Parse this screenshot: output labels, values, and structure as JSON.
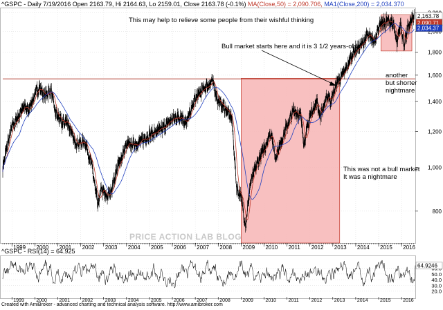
{
  "header": {
    "ticker": "^GSPC",
    "info": "- Daily 7/19/2016 Open 2163.79, Hi 2164.63, Lo 2159.01, Close 2163.78 (-0.1%)",
    "ma50": "MA(Close,50) = 2,090.706,",
    "ma200": "MA1(Close,200) = 2,034.370"
  },
  "rsi_header": "^GSPC - RSI(14) = 64.925",
  "footer": "Created with AmiBroker - advanced charting and technical analysis software. http://www.amibroker.com",
  "watermark": "PRICE ACTION LAB BLOG",
  "annotations": {
    "top_note": "This may help to relieve some people from their wishful thinking",
    "bull_line1": "Bull market starts here and it is 3 1/2 years-old",
    "nightmare_line1": "This was not a bull market",
    "nightmare_line2": "It was a nightmare",
    "another_line1": "another",
    "another_line2": "but shorter",
    "another_line3": "nightmare"
  },
  "price_tags": {
    "close": "2,163.78",
    "ma50": "2,090.71",
    "ma200": "2,034.37"
  },
  "rsi_tags": {
    "value": "64.9246"
  },
  "colors": {
    "price": "#000000",
    "ma50": "#c0392b",
    "ma200": "#1f3fbf",
    "highlight_fill": "#f7b5b5",
    "highlight_stroke": "#c0392b",
    "resistance": "#b03a2e",
    "grid": "#d8d8d8"
  },
  "chart_data": [
    {
      "type": "line",
      "title": "^GSPC - Daily",
      "x_unit": "year",
      "y_scale": "log",
      "ylim": [
        680,
        2250
      ],
      "xlim": [
        1998.6,
        2016.6
      ],
      "y_ticks": [
        800,
        1000,
        1200,
        1400,
        1600,
        1800,
        2000,
        2200
      ],
      "y_tick_labels": [
        "800",
        "1,000",
        "1,200",
        "1,400",
        "1,600",
        "1,800",
        "2,000",
        "2,200"
      ],
      "x_ticks": [
        1999,
        2000,
        2001,
        2002,
        2003,
        2004,
        2005,
        2006,
        2007,
        2008,
        2009,
        2010,
        2011,
        2012,
        2013,
        2014,
        2015,
        2016
      ],
      "x_tick_labels": [
        "1999",
        "2000",
        "2001",
        "2002",
        "2003",
        "2004",
        "2005",
        "2006",
        "2007",
        "2008",
        "2009",
        "2010",
        "2011",
        "2012",
        "2013",
        "2014",
        "2015",
        "2016"
      ],
      "resistance_level": 1570,
      "highlight_boxes": [
        {
          "x": [
            2009.0,
            2013.3
          ],
          "y": [
            680,
            1575
          ]
        },
        {
          "x": [
            2015.1,
            2016.45
          ],
          "y": [
            1810,
            2175
          ]
        }
      ],
      "series": [
        {
          "name": "^GSPC",
          "x": [
            1998.6,
            1998.8,
            1999.0,
            1999.3,
            1999.5,
            1999.7,
            2000.0,
            2000.2,
            2000.4,
            2000.7,
            2000.9,
            2001.2,
            2001.4,
            2001.7,
            2001.9,
            2002.2,
            2002.5,
            2002.75,
            2002.9,
            2003.1,
            2003.3,
            2003.6,
            2004.0,
            2004.5,
            2005.0,
            2005.5,
            2006.0,
            2006.4,
            2006.6,
            2007.0,
            2007.4,
            2007.75,
            2008.0,
            2008.3,
            2008.6,
            2008.8,
            2009.0,
            2009.2,
            2009.4,
            2009.7,
            2010.0,
            2010.3,
            2010.5,
            2010.9,
            2011.3,
            2011.6,
            2011.75,
            2012.0,
            2012.3,
            2012.45,
            2012.8,
            2012.9,
            2013.2,
            2013.5,
            2013.9,
            2014.3,
            2014.5,
            2014.8,
            2015.0,
            2015.4,
            2015.65,
            2015.8,
            2015.95,
            2016.1,
            2016.3,
            2016.55
          ],
          "values": [
            1000,
            1120,
            1230,
            1300,
            1370,
            1330,
            1450,
            1510,
            1440,
            1480,
            1320,
            1250,
            1270,
            1150,
            1130,
            1140,
            1000,
            820,
            900,
            860,
            880,
            1000,
            1120,
            1130,
            1180,
            1210,
            1280,
            1300,
            1250,
            1420,
            1500,
            1550,
            1400,
            1350,
            1280,
            900,
            860,
            740,
            920,
            1020,
            1100,
            1200,
            1050,
            1200,
            1340,
            1300,
            1130,
            1300,
            1400,
            1300,
            1450,
            1400,
            1550,
            1620,
            1800,
            1880,
            1960,
            1900,
            2050,
            2110,
            2080,
            1890,
            2080,
            1870,
            2050,
            2163.78
          ]
        },
        {
          "name": "MA(Close,50)",
          "values_note": "50-day moving average",
          "last": 2090.706
        },
        {
          "name": "MA1(Close,200)",
          "values_note": "200-day moving average",
          "last": 2034.37
        }
      ]
    },
    {
      "type": "line",
      "title": "^GSPC - RSI(14)",
      "ylim": [
        10,
        80
      ],
      "y_ticks": [
        20,
        30,
        40,
        50,
        60
      ],
      "y_tick_labels": [
        "20.0",
        "30.0",
        "40.0",
        "50.0",
        "60.0"
      ],
      "series": [
        {
          "name": "RSI(14)",
          "last": 64.925
        }
      ]
    }
  ]
}
